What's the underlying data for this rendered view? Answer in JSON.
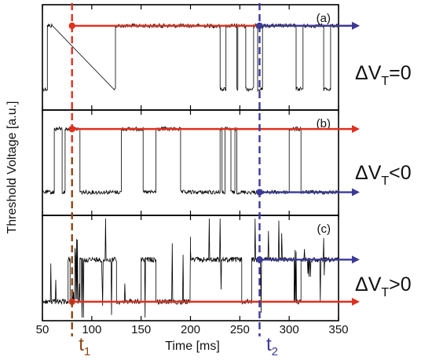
{
  "chart_data": {
    "type": "line",
    "xlabel": "Time [ms]",
    "ylabel": "Threshold Voltage [a.u.]",
    "xlim": [
      50,
      350
    ],
    "xticks": [
      50,
      100,
      150,
      200,
      250,
      300,
      350
    ],
    "markers": [
      {
        "label_main": "t",
        "label_sub": "1",
        "x": 80,
        "color": "#8b4513",
        "top_color": "#e0301e"
      },
      {
        "label_main": "t",
        "label_sub": "2",
        "x": 270,
        "color": "#3a3a9a"
      }
    ],
    "panels": [
      {
        "label": "(a)",
        "delta_main": "ΔV",
        "delta_sub": "T",
        "delta_rest": "=0",
        "signal_color": "#000000",
        "high_level": 0.8,
        "low_level": 0.2,
        "segments": [
          [
            50,
            55,
            "low"
          ],
          [
            55,
            60,
            "high"
          ],
          [
            123,
            124,
            "low"
          ],
          [
            124,
            230,
            "high"
          ],
          [
            230,
            236,
            "low"
          ],
          [
            236,
            247,
            "high"
          ],
          [
            247,
            248,
            "low"
          ],
          [
            248,
            256,
            "high"
          ],
          [
            256,
            264,
            "low"
          ],
          [
            264,
            268,
            "high"
          ],
          [
            268,
            273,
            "low"
          ],
          [
            273,
            307,
            "high"
          ],
          [
            307,
            314,
            "low"
          ],
          [
            314,
            335,
            "high"
          ],
          [
            335,
            342,
            "low"
          ],
          [
            342,
            350,
            "high"
          ]
        ],
        "arrows": [
          {
            "x_start": 80,
            "x_end": 350,
            "level": "high",
            "color": "#e0301e"
          },
          {
            "x_start": 270,
            "x_end": 350,
            "level": "high",
            "color": "#3a3a9a"
          }
        ]
      },
      {
        "label": "(b)",
        "delta_main": "ΔV",
        "delta_sub": "T",
        "delta_rest": "<0",
        "signal_color": "#000000",
        "high_level": 0.82,
        "low_level": 0.22,
        "segments": [
          [
            50,
            62,
            "low"
          ],
          [
            62,
            70,
            "high"
          ],
          [
            70,
            73,
            "low"
          ],
          [
            73,
            88,
            "high"
          ],
          [
            88,
            130,
            "low"
          ],
          [
            130,
            152,
            "high"
          ],
          [
            152,
            165,
            "low"
          ],
          [
            165,
            190,
            "high"
          ],
          [
            190,
            230,
            "low"
          ],
          [
            230,
            232,
            "high"
          ],
          [
            232,
            235,
            "low"
          ],
          [
            235,
            241,
            "high"
          ],
          [
            241,
            245,
            "low"
          ],
          [
            245,
            247,
            "high"
          ],
          [
            247,
            300,
            "low"
          ],
          [
            300,
            312,
            "high"
          ],
          [
            312,
            350,
            "low"
          ]
        ],
        "arrows": [
          {
            "x_start": 80,
            "x_end": 350,
            "level": "high",
            "color": "#e0301e"
          },
          {
            "x_start": 270,
            "x_end": 350,
            "level": "low",
            "color": "#3a3a9a"
          }
        ]
      },
      {
        "label": "(c)",
        "delta_main": "ΔV",
        "delta_sub": "T",
        "delta_rest": ">0",
        "signal_color": "#000000",
        "high_level": 0.58,
        "low_level": 0.18,
        "segments": [
          [
            50,
            76,
            "low"
          ],
          [
            76,
            78,
            "high"
          ],
          [
            78,
            88,
            "low"
          ],
          [
            88,
            125,
            "high"
          ],
          [
            125,
            150,
            "low"
          ],
          [
            150,
            165,
            "high"
          ],
          [
            165,
            200,
            "low"
          ],
          [
            200,
            252,
            "high"
          ],
          [
            252,
            262,
            "low"
          ],
          [
            262,
            305,
            "high"
          ],
          [
            305,
            312,
            "low"
          ],
          [
            312,
            350,
            "high"
          ]
        ],
        "arrows": [
          {
            "x_start": 80,
            "x_end": 350,
            "level": "low",
            "color": "#e0301e"
          },
          {
            "x_start": 270,
            "x_end": 350,
            "level": "high",
            "color": "#3a3a9a"
          }
        ]
      }
    ]
  }
}
